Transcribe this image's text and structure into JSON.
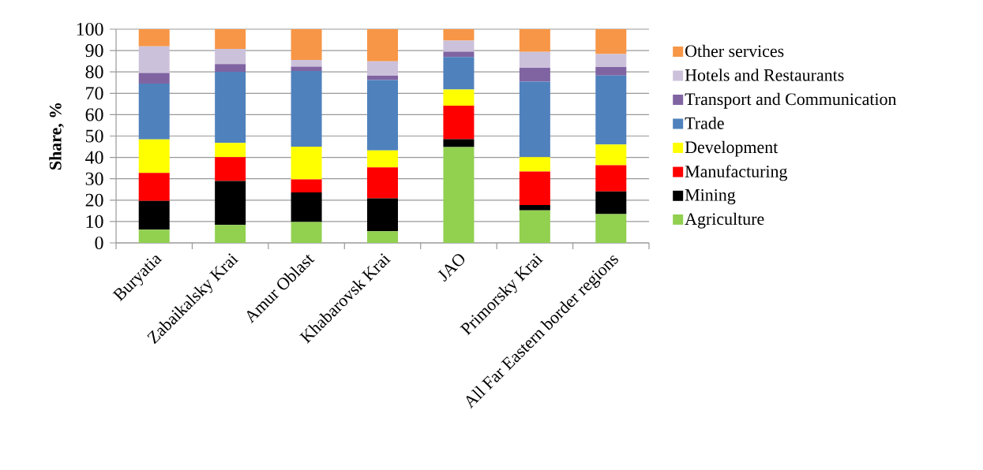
{
  "chart_data": {
    "type": "bar",
    "stacked": true,
    "ylabel": "Share, %",
    "categories": [
      "Buryatia",
      "Zabaikalsky Krai",
      "Amur Oblast",
      "Khabarovsk Krai",
      "JAO",
      "Primorsky Krai",
      "All Far Eastern border regions"
    ],
    "series": [
      {
        "name": "Agriculture",
        "color": "#92d050",
        "values": [
          6.2,
          8.4,
          9.8,
          5.4,
          44.8,
          15.2,
          13.5
        ]
      },
      {
        "name": "Mining",
        "color": "#000000",
        "values": [
          13.4,
          20.6,
          13.8,
          15.4,
          3.7,
          2.5,
          10.6
        ]
      },
      {
        "name": "Manufacturing",
        "color": "#ff0000",
        "values": [
          13.1,
          11.1,
          6.1,
          14.5,
          15.7,
          15.7,
          12.2
        ]
      },
      {
        "name": "Development",
        "color": "#ffff00",
        "values": [
          15.7,
          6.7,
          15.3,
          8.0,
          7.6,
          6.7,
          9.7
        ]
      },
      {
        "name": "Trade",
        "color": "#4f81bd",
        "values": [
          26.1,
          33.3,
          35.4,
          32.9,
          15.2,
          35.4,
          32.3
        ]
      },
      {
        "name": "Transport and Communication",
        "color": "#8064a2",
        "values": [
          5.0,
          3.6,
          2.1,
          2.0,
          2.5,
          6.4,
          4.0
        ]
      },
      {
        "name": "Hotels and Restaurants",
        "color": "#ccc1da",
        "values": [
          12.5,
          7.1,
          3.1,
          6.8,
          5.1,
          7.5,
          6.1
        ]
      },
      {
        "name": "Other services",
        "color": "#f79646",
        "values": [
          8.0,
          9.2,
          14.4,
          15.0,
          5.4,
          10.6,
          11.6
        ]
      }
    ],
    "ylim": [
      0,
      100
    ],
    "yticks": [
      0,
      10,
      20,
      30,
      40,
      50,
      60,
      70,
      80,
      90,
      100
    ],
    "grid": "y",
    "legend": "right"
  }
}
